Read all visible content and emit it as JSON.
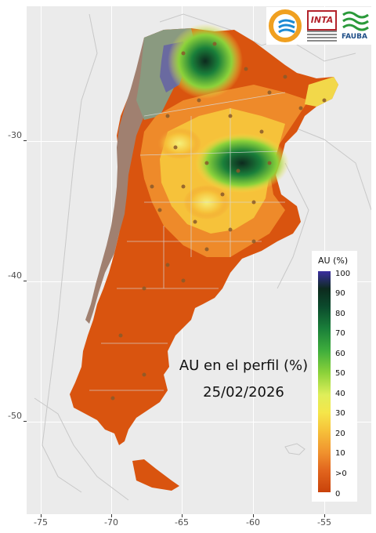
{
  "map": {
    "title": "AU en el perfil (%)",
    "date": "25/02/2026",
    "x_ticks": [
      "-75",
      "-70",
      "-65",
      "-60",
      "-55"
    ],
    "y_ticks": [
      "-30",
      "-40",
      "-50"
    ],
    "colors": {
      "background": "#ebebeb",
      "zero": "#c9420a",
      "dry": "#e2661e",
      "mid": "#f6c23a",
      "wet": "#3fae3c",
      "saturated": "#0d2a1e",
      "max": "#3a2fa0",
      "no_data": "#a08070"
    }
  },
  "legend": {
    "title": "AU (%)",
    "labels": [
      "100",
      "90",
      "80",
      "70",
      "60",
      "50",
      "40",
      "30",
      "20",
      "10",
      ">0",
      "0"
    ]
  },
  "logos": {
    "inta": "INTA",
    "fauba": "FAUBA"
  }
}
